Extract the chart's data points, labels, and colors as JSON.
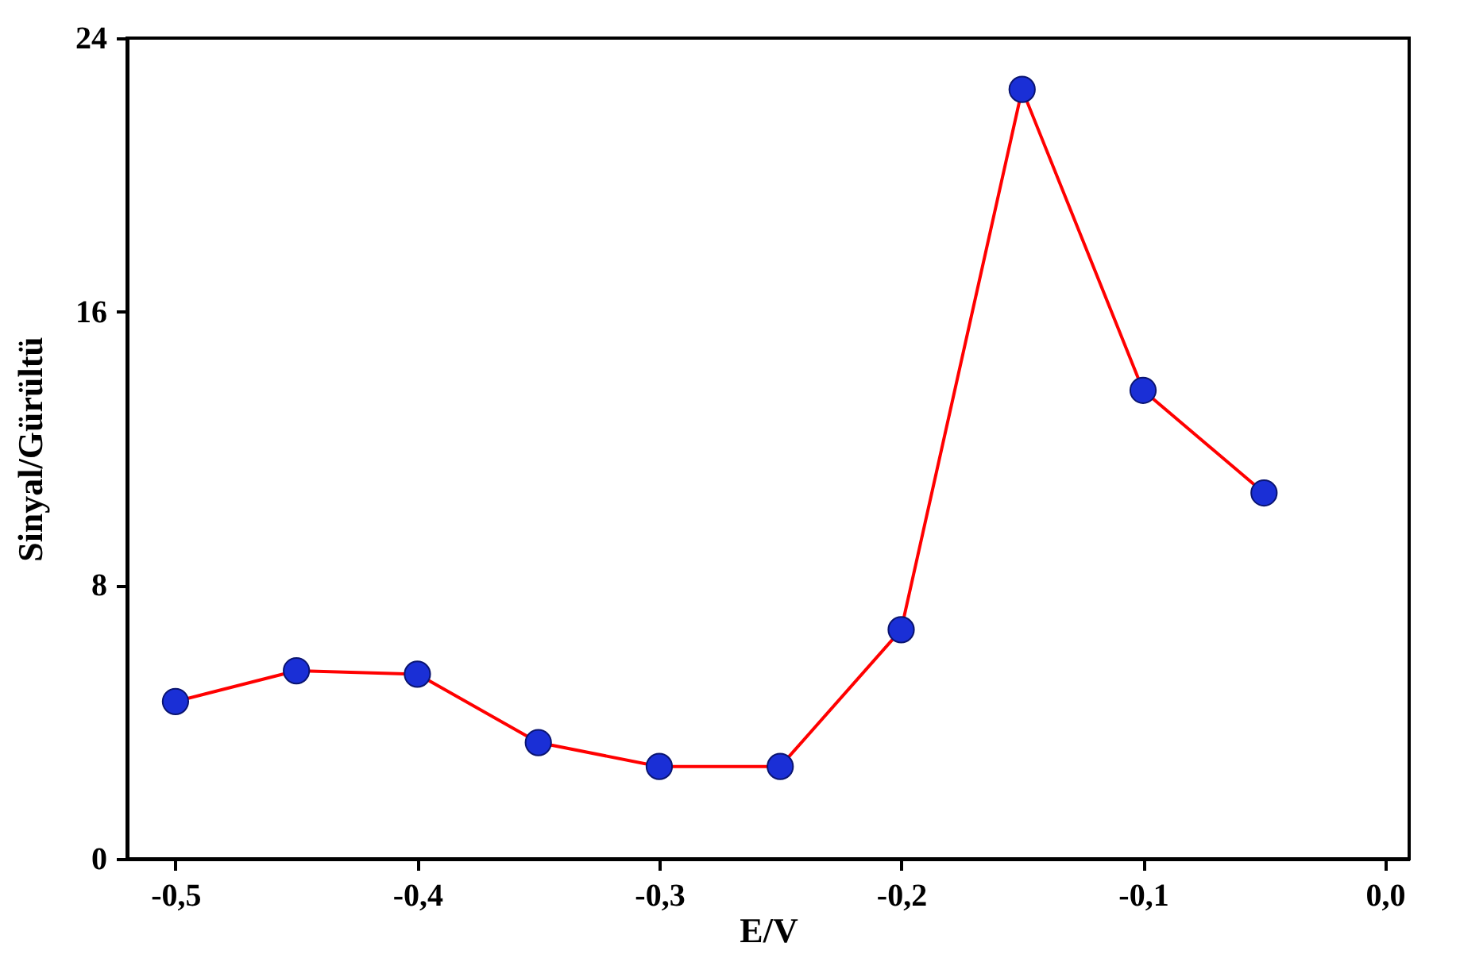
{
  "chart_data": {
    "type": "line",
    "xlabel": "E/V",
    "ylabel": "Sinyal/Gürültü",
    "x": [
      -0.5,
      -0.45,
      -0.4,
      -0.35,
      -0.3,
      -0.25,
      -0.2,
      -0.15,
      -0.1,
      -0.05
    ],
    "series": [
      {
        "color": "#ff0000",
        "colors": [
          "#1a2fd6",
          "#1a2fd6",
          "#1a2fd6",
          "#1a2fd6",
          "#1a2fd6",
          "#1a2fd6",
          "#1a2fd6",
          "#1a2fd6",
          "#1a2fd6",
          "#1a2fd6"
        ],
        "values": [
          4.6,
          5.5,
          5.4,
          3.4,
          2.7,
          2.7,
          6.7,
          22.5,
          13.7,
          10.7
        ]
      }
    ],
    "xlim": [
      -0.52,
      0.01
    ],
    "xticks": [
      {
        "value": -0.5,
        "label": "-0,5"
      },
      {
        "value": -0.4,
        "label": "-0,4"
      },
      {
        "value": -0.3,
        "label": "-0,3"
      },
      {
        "value": -0.2,
        "label": "-0,2"
      },
      {
        "value": -0.1,
        "label": "-0,1"
      },
      {
        "value": 0,
        "label": "0,0"
      }
    ],
    "ylim": [
      0,
      24
    ],
    "yticks": [
      0,
      8,
      16,
      24
    ],
    "grid": false,
    "marker": "circle",
    "line_style": "solid"
  }
}
